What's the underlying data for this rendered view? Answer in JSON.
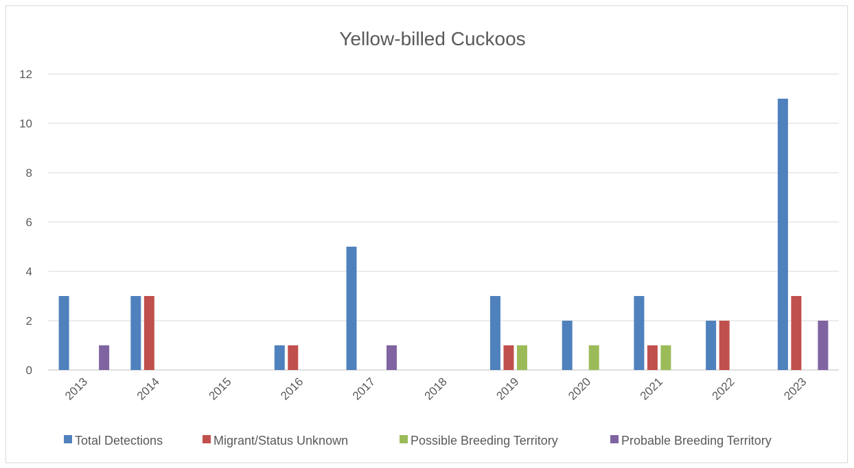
{
  "chart_data": {
    "type": "bar",
    "title": "Yellow-billed Cuckoos",
    "xlabel": "",
    "ylabel": "",
    "categories": [
      "2013",
      "2014",
      "2015",
      "2016",
      "2017",
      "2018",
      "2019",
      "2020",
      "2021",
      "2022",
      "2023"
    ],
    "series": [
      {
        "name": "Total Detections",
        "color": "#4f81bd",
        "values": [
          3,
          3,
          0,
          1,
          5,
          0,
          3,
          2,
          3,
          2,
          11
        ]
      },
      {
        "name": "Migrant/Status Unknown",
        "color": "#c0504d",
        "values": [
          0,
          3,
          0,
          1,
          0,
          0,
          1,
          0,
          1,
          2,
          3
        ]
      },
      {
        "name": "Possible Breeding Territory",
        "color": "#9bbb59",
        "values": [
          0,
          0,
          0,
          0,
          0,
          0,
          1,
          1,
          1,
          0,
          0
        ]
      },
      {
        "name": "Probable Breeding Territory",
        "color": "#8064a2",
        "values": [
          1,
          0,
          0,
          0,
          1,
          0,
          0,
          0,
          0,
          0,
          2
        ]
      }
    ],
    "ylim": [
      0,
      12
    ],
    "yticks": [
      0,
      2,
      4,
      6,
      8,
      10,
      12
    ],
    "grid": true,
    "legend": "bottom"
  }
}
